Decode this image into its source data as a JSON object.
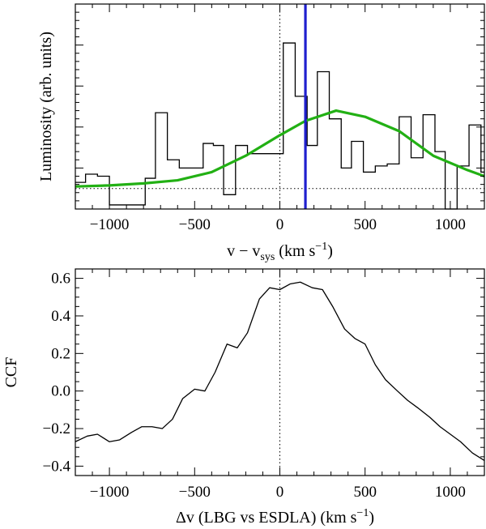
{
  "chart_data": [
    {
      "type": "line",
      "panel": "top",
      "title": "",
      "xlabel": "v − v",
      "xlabel_sub": "sys",
      "xlabel_unit": " (km s",
      "xlabel_unit_sup": "−1",
      "xlabel_close": ")",
      "ylabel": "Luminosity (arb. units)",
      "xlim": [
        -1200,
        1200
      ],
      "ylim": [
        0,
        1
      ],
      "x_ticks": [
        -1000,
        -500,
        0,
        500,
        1000
      ],
      "y_tick_labels_shown": false,
      "grid": false,
      "reference_lines": {
        "vertical_dotted_x": 0,
        "horizontal_dotted_y": 0.1,
        "vertical_blue_x": 150
      },
      "series": [
        {
          "style": "steps",
          "color": "#000000",
          "x_edges": [
            -1200,
            -1140,
            -1070,
            -1000,
            -930,
            -860,
            -790,
            -730,
            -660,
            -590,
            -520,
            -450,
            -390,
            -330,
            -260,
            -190,
            -120,
            -50,
            20,
            90,
            160,
            220,
            290,
            360,
            420,
            490,
            560,
            630,
            700,
            770,
            840,
            910,
            970,
            1040,
            1110,
            1180,
            1200
          ],
          "y": [
            0.13,
            0.17,
            0.16,
            0.02,
            0.02,
            0.02,
            0.15,
            0.47,
            0.24,
            0.2,
            0.2,
            0.32,
            0.31,
            0.07,
            0.31,
            0.27,
            0.27,
            0.27,
            0.81,
            0.55,
            0.31,
            0.67,
            0.44,
            0.2,
            0.33,
            0.18,
            0.21,
            0.22,
            0.45,
            0.25,
            0.46,
            0.28,
            0.0,
            0.21,
            0.41,
            0.18,
            0.18
          ]
        },
        {
          "style": "line",
          "color": "#22b014",
          "x": [
            -1200,
            -1000,
            -800,
            -600,
            -400,
            -200,
            0,
            150,
            330,
            500,
            700,
            900,
            1100,
            1200
          ],
          "y": [
            0.11,
            0.115,
            0.125,
            0.14,
            0.18,
            0.26,
            0.36,
            0.43,
            0.48,
            0.45,
            0.38,
            0.26,
            0.19,
            0.16
          ]
        }
      ]
    },
    {
      "type": "line",
      "panel": "bottom",
      "title": "",
      "xlabel": "Δv (LBG vs ESDLA) (km s",
      "xlabel_unit_sup": "−1",
      "xlabel_close": ")",
      "ylabel": "CCF",
      "xlim": [
        -1200,
        1200
      ],
      "ylim": [
        -0.45,
        0.65
      ],
      "x_ticks": [
        -1000,
        -500,
        0,
        500,
        1000
      ],
      "y_ticks": [
        -0.4,
        -0.2,
        0.0,
        0.2,
        0.4,
        0.6
      ],
      "y_tick_labels": [
        "−0.4",
        "−0.2",
        "0.0",
        "0.2",
        "0.4",
        "0.6"
      ],
      "grid": false,
      "reference_lines": {
        "vertical_dotted_x": 0
      },
      "series": [
        {
          "color": "#000000",
          "x": [
            -1200,
            -1130,
            -1070,
            -1000,
            -940,
            -870,
            -810,
            -750,
            -690,
            -630,
            -570,
            -500,
            -440,
            -380,
            -310,
            -250,
            -190,
            -120,
            -60,
            0,
            60,
            120,
            190,
            250,
            310,
            380,
            440,
            500,
            560,
            620,
            690,
            750,
            810,
            880,
            940,
            1000,
            1060,
            1130,
            1200
          ],
          "y": [
            -0.27,
            -0.24,
            -0.23,
            -0.27,
            -0.26,
            -0.22,
            -0.19,
            -0.19,
            -0.2,
            -0.15,
            -0.04,
            0.01,
            0.0,
            0.1,
            0.25,
            0.23,
            0.31,
            0.49,
            0.55,
            0.54,
            0.57,
            0.58,
            0.55,
            0.54,
            0.45,
            0.33,
            0.28,
            0.25,
            0.14,
            0.06,
            0.0,
            -0.05,
            -0.09,
            -0.14,
            -0.19,
            -0.23,
            -0.27,
            -0.33,
            -0.37
          ]
        }
      ]
    }
  ]
}
